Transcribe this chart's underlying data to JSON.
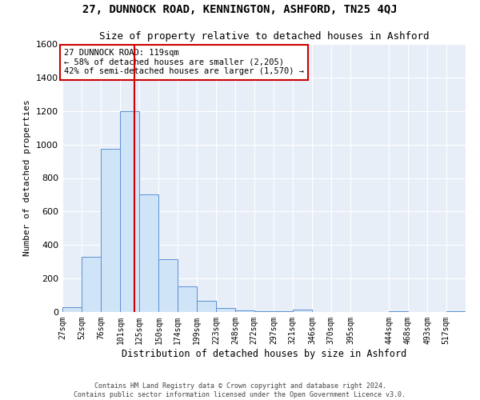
{
  "title_line1": "27, DUNNOCK ROAD, KENNINGTON, ASHFORD, TN25 4QJ",
  "title_line2": "Size of property relative to detached houses in Ashford",
  "xlabel": "Distribution of detached houses by size in Ashford",
  "ylabel": "Number of detached properties",
  "footer_line1": "Contains HM Land Registry data © Crown copyright and database right 2024.",
  "footer_line2": "Contains public sector information licensed under the Open Government Licence v3.0.",
  "property_label": "27 DUNNOCK ROAD: 119sqm",
  "annotation_line1": "← 58% of detached houses are smaller (2,205)",
  "annotation_line2": "42% of semi-detached houses are larger (1,570) →",
  "red_line_x": 119,
  "bar_edges": [
    27,
    52,
    76,
    101,
    125,
    150,
    174,
    199,
    223,
    248,
    272,
    297,
    321,
    346,
    370,
    395,
    419,
    444,
    468,
    493,
    517
  ],
  "bar_heights": [
    30,
    330,
    975,
    1200,
    700,
    315,
    155,
    65,
    25,
    10,
    5,
    3,
    15,
    2,
    2,
    2,
    0,
    5,
    0,
    0,
    5
  ],
  "bar_color": "#d0e4f7",
  "bar_edge_color": "#5b8fd4",
  "background_color": "#e8eef8",
  "ylim": [
    0,
    1600
  ],
  "yticks": [
    0,
    200,
    400,
    600,
    800,
    1000,
    1200,
    1400,
    1600
  ],
  "grid_color": "#ffffff",
  "red_line_color": "#cc0000",
  "box_color": "#cc0000",
  "tick_labels": [
    "27sqm",
    "52sqm",
    "76sqm",
    "101sqm",
    "125sqm",
    "150sqm",
    "174sqm",
    "199sqm",
    "223sqm",
    "248sqm",
    "272sqm",
    "297sqm",
    "321sqm",
    "346sqm",
    "370sqm",
    "395sqm",
    "444sqm",
    "468sqm",
    "493sqm",
    "517sqm"
  ],
  "tick_positions": [
    27,
    52,
    76,
    101,
    125,
    150,
    174,
    199,
    223,
    248,
    272,
    297,
    321,
    346,
    370,
    395,
    444,
    468,
    493,
    517
  ]
}
